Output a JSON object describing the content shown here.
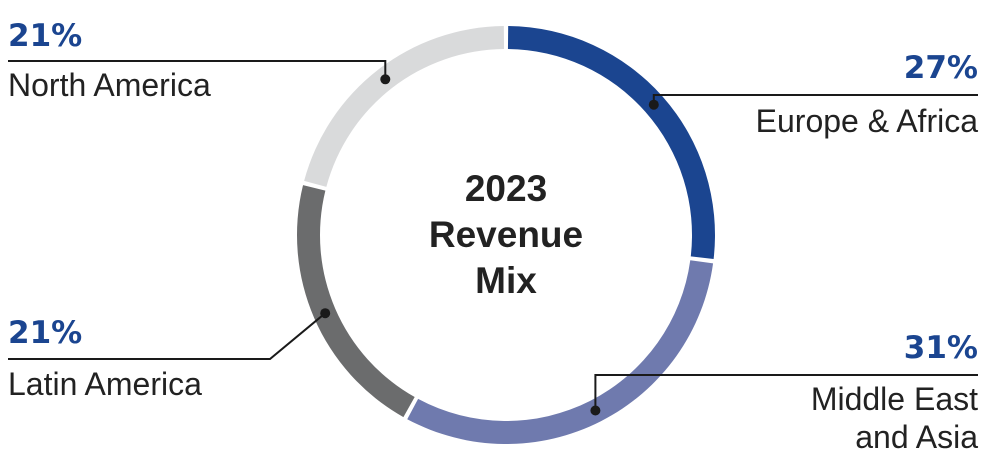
{
  "chart_data": {
    "type": "pie",
    "title": "2023 Revenue Mix",
    "title_lines": [
      "2023",
      "Revenue",
      "Mix"
    ],
    "slices": [
      {
        "label": "Europe & Africa",
        "label_lines": [
          "Europe & Africa"
        ],
        "value": 27,
        "value_label": "27%",
        "color": "#1b4590"
      },
      {
        "label": "Middle East and Asia",
        "label_lines": [
          "Middle East",
          "and Asia"
        ],
        "value": 31,
        "value_label": "31%",
        "color": "#6f7aae"
      },
      {
        "label": "Latin America",
        "label_lines": [
          "Latin America"
        ],
        "value": 21,
        "value_label": "21%",
        "color": "#6b6c6d"
      },
      {
        "label": "North America",
        "label_lines": [
          "North America"
        ],
        "value": 21,
        "value_label": "21%",
        "color": "#d9dadb"
      }
    ],
    "start_angle_deg": 0,
    "direction": "clockwise",
    "style": "donut"
  }
}
